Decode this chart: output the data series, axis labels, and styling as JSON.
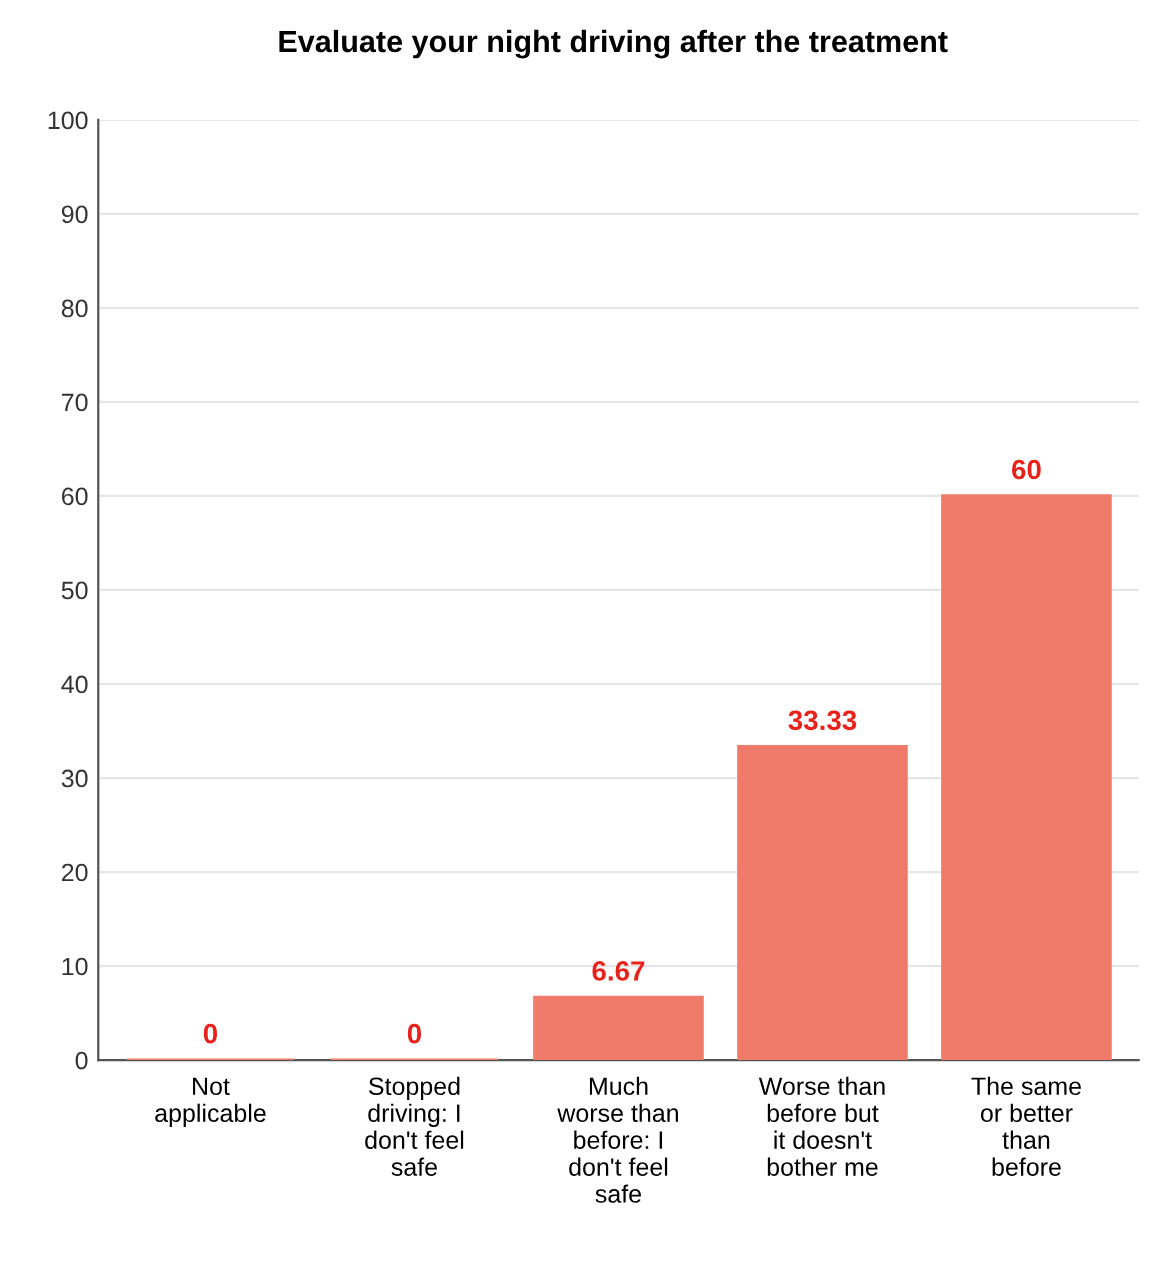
{
  "chart_data": {
    "type": "bar",
    "title": "Evaluate your night driving after the treatment",
    "categories": [
      "Not\napplicable",
      "Stopped\ndriving: I\ndon't feel\nsafe",
      "Much\nworse than\nbefore: I\ndon't feel\nsafe",
      "Worse than\nbefore but\nit doesn't\nbother me",
      "The same\nor better\nthan\nbefore"
    ],
    "values": [
      0,
      0,
      6.67,
      33.33,
      60
    ],
    "color": "#f07b6b",
    "data_labels": true,
    "ylim": [
      0,
      100
    ],
    "yticks": [
      0,
      10,
      20,
      30,
      40,
      50,
      60,
      70,
      80,
      90,
      100
    ],
    "grid": "y"
  }
}
